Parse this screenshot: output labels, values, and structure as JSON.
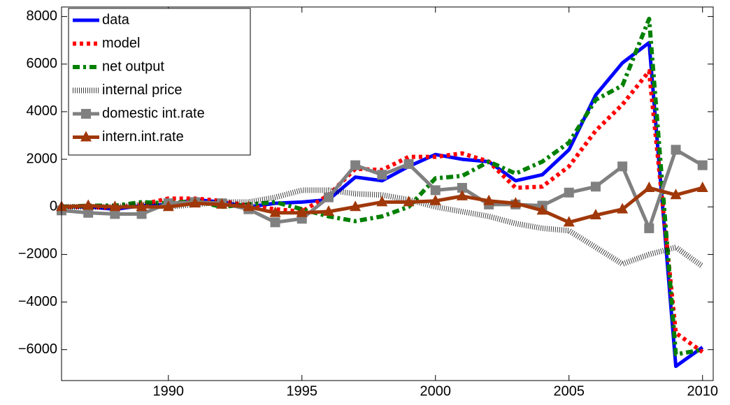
{
  "chart_data": {
    "type": "line",
    "x": [
      1986,
      1987,
      1988,
      1989,
      1990,
      1991,
      1992,
      1993,
      1994,
      1995,
      1996,
      1997,
      1998,
      1999,
      2000,
      2001,
      2002,
      2003,
      2004,
      2005,
      2006,
      2007,
      2008,
      2009,
      2010
    ],
    "xlim": [
      1986,
      2010.4
    ],
    "xticks": [
      1990,
      1995,
      2000,
      2005,
      2010
    ],
    "ylim": [
      -7300,
      8400
    ],
    "yticks": [
      {
        "value": -6000,
        "label": "−6000"
      },
      {
        "value": -4000,
        "label": "−4000"
      },
      {
        "value": -2000,
        "label": "−2000"
      },
      0,
      2000,
      4000,
      6000,
      8000
    ],
    "legend": "top-left",
    "series": [
      {
        "name": "data",
        "color": "#0000ff",
        "style": "solid",
        "values": [
          0,
          0,
          -100,
          50,
          100,
          300,
          200,
          0,
          150,
          200,
          300,
          1250,
          1100,
          1700,
          2200,
          2000,
          1900,
          1100,
          1350,
          2400,
          4700,
          6050,
          6900,
          -6700,
          -5900
        ]
      },
      {
        "name": "model",
        "color": "#ff0000",
        "style": "dotted",
        "values": [
          0,
          0,
          -50,
          100,
          350,
          350,
          250,
          50,
          -100,
          -200,
          500,
          1600,
          1550,
          2100,
          2100,
          2250,
          1900,
          800,
          850,
          1700,
          3200,
          4300,
          5700,
          -5300,
          -6100
        ]
      },
      {
        "name": "net output",
        "color": "#008000",
        "style": "dashdot",
        "values": [
          0,
          50,
          50,
          200,
          150,
          250,
          0,
          100,
          200,
          -100,
          -400,
          -600,
          -400,
          0,
          1200,
          1300,
          1900,
          1400,
          1900,
          2700,
          4500,
          5100,
          7900,
          -6200,
          -6000
        ]
      },
      {
        "name": "internal price",
        "color": "#000000",
        "style": "hatch",
        "values": [
          0,
          0,
          0,
          100,
          0,
          100,
          200,
          200,
          400,
          700,
          700,
          550,
          500,
          300,
          0,
          -200,
          -400,
          -700,
          -900,
          -1000,
          -1700,
          -2400,
          -2000,
          -1700,
          -2500
        ]
      },
      {
        "name": "domestic int.rate",
        "color": "#808080",
        "style": "solid",
        "marker": "square",
        "values": [
          -150,
          -250,
          -300,
          -300,
          150,
          200,
          150,
          -100,
          -650,
          -500,
          400,
          1750,
          1350,
          1800,
          700,
          800,
          100,
          100,
          50,
          600,
          850,
          1700,
          -900,
          2400,
          1750
        ]
      },
      {
        "name": "intern.int.rate",
        "color": "#a0380a",
        "style": "solid",
        "marker": "triangle",
        "values": [
          0,
          50,
          0,
          0,
          0,
          150,
          100,
          0,
          -250,
          -250,
          -200,
          0,
          200,
          200,
          250,
          450,
          250,
          150,
          -150,
          -650,
          -350,
          -100,
          800,
          500,
          800
        ]
      }
    ]
  }
}
